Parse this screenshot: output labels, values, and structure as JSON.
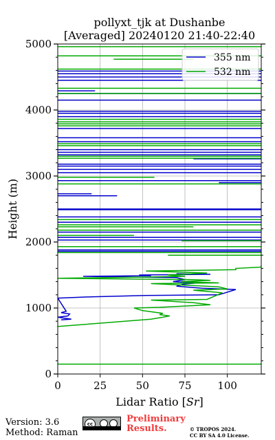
{
  "chart_data": {
    "type": "line",
    "title": [
      "pollyxt_tjk at Dushanbe",
      "[Averaged] 20240120 21:40-22:40"
    ],
    "xlabel": "Lidar Ratio [Sr]",
    "ylabel": "Height (m)",
    "xlim": [
      0,
      120
    ],
    "ylim": [
      0,
      5000
    ],
    "xticks": [
      0,
      25,
      50,
      75,
      100
    ],
    "yticks": [
      0,
      1000,
      2000,
      3000,
      4000,
      5000
    ],
    "yticks_minor": [
      200,
      400,
      600,
      800,
      1200,
      1400,
      1600,
      1800,
      2200,
      2400,
      2600,
      2800,
      3200,
      3400,
      3600,
      3800,
      4200,
      4400,
      4600,
      4800
    ],
    "grid": true,
    "legend_position": "top-right",
    "series": [
      {
        "name": "355 nm",
        "color": "#0000cc",
        "profile": [
          [
            2,
            820
          ],
          [
            8,
            830
          ],
          [
            0,
            860
          ],
          [
            6,
            880
          ],
          [
            7,
            910
          ],
          [
            2,
            930
          ],
          [
            5,
            950
          ],
          [
            0,
            1150
          ],
          [
            20,
            1170
          ],
          [
            52,
            1190
          ],
          [
            95,
            1200
          ],
          [
            105,
            1280
          ],
          [
            85,
            1300
          ],
          [
            70,
            1330
          ],
          [
            74,
            1360
          ],
          [
            82,
            1380
          ],
          [
            68,
            1400
          ],
          [
            75,
            1430
          ],
          [
            70,
            1460
          ],
          [
            40,
            1470
          ],
          [
            15,
            1480
          ],
          [
            55,
            1490
          ],
          [
            48,
            1500
          ],
          [
            90,
            1510
          ],
          [
            70,
            1520
          ]
        ],
        "layers": [
          {
            "height": 1860,
            "x_from": 0,
            "x_to": 120
          },
          {
            "height": 1880,
            "x_from": 0,
            "x_to": 120
          },
          {
            "height": 2030,
            "x_from": 0,
            "x_to": 120
          },
          {
            "height": 2070,
            "x_from": 0,
            "x_to": 120
          },
          {
            "height": 2150,
            "x_from": 0,
            "x_to": 120
          },
          {
            "height": 2300,
            "x_from": 0,
            "x_to": 120
          },
          {
            "height": 2380,
            "x_from": 0,
            "x_to": 120
          },
          {
            "height": 2490,
            "x_from": 0,
            "x_to": 120
          },
          {
            "height": 2500,
            "x_from": 0,
            "x_to": 120
          },
          {
            "height": 2700,
            "x_from": 0,
            "x_to": 35
          },
          {
            "height": 2730,
            "x_from": 0,
            "x_to": 20
          },
          {
            "height": 2900,
            "x_from": 95,
            "x_to": 120
          },
          {
            "height": 2930,
            "x_from": 0,
            "x_to": 120
          },
          {
            "height": 3050,
            "x_from": 0,
            "x_to": 120
          },
          {
            "height": 3100,
            "x_from": 0,
            "x_to": 120
          },
          {
            "height": 3150,
            "x_from": 0,
            "x_to": 120
          },
          {
            "height": 3180,
            "x_from": 0,
            "x_to": 120
          },
          {
            "height": 3260,
            "x_from": 80,
            "x_to": 120
          },
          {
            "height": 3320,
            "x_from": 0,
            "x_to": 120
          },
          {
            "height": 3360,
            "x_from": 0,
            "x_to": 120
          },
          {
            "height": 3400,
            "x_from": 0,
            "x_to": 120
          },
          {
            "height": 3520,
            "x_from": 0,
            "x_to": 120
          },
          {
            "height": 3580,
            "x_from": 0,
            "x_to": 120
          },
          {
            "height": 3720,
            "x_from": 0,
            "x_to": 120
          },
          {
            "height": 3900,
            "x_from": 0,
            "x_to": 120
          },
          {
            "height": 3950,
            "x_from": 0,
            "x_to": 120
          },
          {
            "height": 3980,
            "x_from": 0,
            "x_to": 120
          },
          {
            "height": 4150,
            "x_from": 0,
            "x_to": 120
          },
          {
            "height": 4250,
            "x_from": 0,
            "x_to": 120
          },
          {
            "height": 4290,
            "x_from": 0,
            "x_to": 22
          },
          {
            "height": 4450,
            "x_from": 0,
            "x_to": 120
          },
          {
            "height": 4500,
            "x_from": 0,
            "x_to": 120
          },
          {
            "height": 4550,
            "x_from": 0,
            "x_to": 120
          },
          {
            "height": 4590,
            "x_from": 0,
            "x_to": 120
          }
        ]
      },
      {
        "name": "532 nm",
        "color": "#00aa00",
        "profile": [
          [
            0,
            720
          ],
          [
            30,
            780
          ],
          [
            55,
            830
          ],
          [
            62,
            860
          ],
          [
            66,
            880
          ],
          [
            60,
            900
          ],
          [
            62,
            920
          ],
          [
            50,
            960
          ],
          [
            45,
            1000
          ],
          [
            60,
            1010
          ],
          [
            75,
            1030
          ],
          [
            90,
            1050
          ],
          [
            80,
            1080
          ],
          [
            55,
            1120
          ],
          [
            88,
            1130
          ],
          [
            97,
            1230
          ],
          [
            80,
            1270
          ],
          [
            100,
            1290
          ],
          [
            95,
            1320
          ],
          [
            80,
            1340
          ],
          [
            55,
            1370
          ],
          [
            95,
            1380
          ],
          [
            73,
            1400
          ],
          [
            90,
            1420
          ],
          [
            80,
            1430
          ],
          [
            0,
            1450
          ],
          [
            55,
            1470
          ],
          [
            75,
            1480
          ],
          [
            65,
            1500
          ],
          [
            88,
            1530
          ],
          [
            52,
            1560
          ],
          [
            105,
            1580
          ],
          [
            105,
            1600
          ],
          [
            120,
            1620
          ],
          [
            120,
            1650
          ]
        ],
        "layers": [
          {
            "height": 150,
            "x_from": 0,
            "x_to": 120
          },
          {
            "height": 1800,
            "x_from": 65,
            "x_to": 120
          },
          {
            "height": 1840,
            "x_from": 0,
            "x_to": 120
          },
          {
            "height": 1930,
            "x_from": 0,
            "x_to": 120
          },
          {
            "height": 2020,
            "x_from": 73,
            "x_to": 120
          },
          {
            "height": 2100,
            "x_from": 0,
            "x_to": 45
          },
          {
            "height": 2180,
            "x_from": 0,
            "x_to": 120
          },
          {
            "height": 2230,
            "x_from": 0,
            "x_to": 80
          },
          {
            "height": 2260,
            "x_from": 0,
            "x_to": 120
          },
          {
            "height": 2340,
            "x_from": 0,
            "x_to": 120
          },
          {
            "height": 2880,
            "x_from": 0,
            "x_to": 120
          },
          {
            "height": 2980,
            "x_from": 0,
            "x_to": 57
          },
          {
            "height": 3270,
            "x_from": 0,
            "x_to": 120
          },
          {
            "height": 3300,
            "x_from": 0,
            "x_to": 120
          },
          {
            "height": 3460,
            "x_from": 0,
            "x_to": 120
          },
          {
            "height": 3490,
            "x_from": 0,
            "x_to": 120
          },
          {
            "height": 3760,
            "x_from": 0,
            "x_to": 120
          },
          {
            "height": 3790,
            "x_from": 0,
            "x_to": 120
          },
          {
            "height": 3820,
            "x_from": 0,
            "x_to": 120
          },
          {
            "height": 3860,
            "x_from": 0,
            "x_to": 120
          },
          {
            "height": 4250,
            "x_from": 0,
            "x_to": 120
          },
          {
            "height": 4330,
            "x_from": 0,
            "x_to": 120
          },
          {
            "height": 4620,
            "x_from": 0,
            "x_to": 120
          },
          {
            "height": 4770,
            "x_from": 33,
            "x_to": 80
          },
          {
            "height": 4820,
            "x_from": 0,
            "x_to": 120
          },
          {
            "height": 4960,
            "x_from": 0,
            "x_to": 120
          }
        ]
      }
    ]
  },
  "footer": {
    "version": "Version: 3.6",
    "method": "Method: Raman",
    "license_badge": [
      "cc",
      "by",
      "sa"
    ],
    "preliminary": [
      "Preliminary",
      "Results."
    ],
    "copyright": [
      "© TROPOS 2024.",
      "CC BY SA 4.0 License."
    ]
  }
}
